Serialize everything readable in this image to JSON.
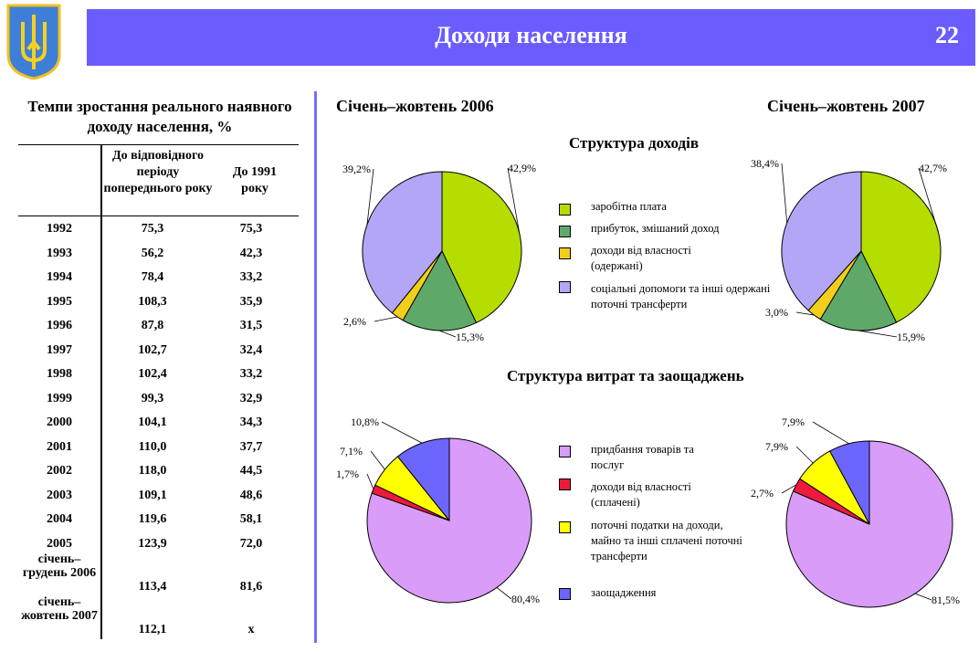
{
  "header": {
    "title": "Доходи населення",
    "page_number": "22"
  },
  "table": {
    "title": "Темпи зростання реального наявного доходу населення, %",
    "columns": [
      "",
      "До відповідного періоду попереднього року",
      "До 1991 року"
    ],
    "rows": [
      [
        "1992",
        "75,3",
        "75,3"
      ],
      [
        "1993",
        "56,2",
        "42,3"
      ],
      [
        "1994",
        "78,4",
        "33,2"
      ],
      [
        "1995",
        "108,3",
        "35,9"
      ],
      [
        "1996",
        "87,8",
        "31,5"
      ],
      [
        "1997",
        "102,7",
        "32,4"
      ],
      [
        "1998",
        "102,4",
        "33,2"
      ],
      [
        "1999",
        "99,3",
        "32,9"
      ],
      [
        "2000",
        "104,1",
        "34,3"
      ],
      [
        "2001",
        "110,0",
        "37,7"
      ],
      [
        "2002",
        "118,0",
        "44,5"
      ],
      [
        "2003",
        "109,1",
        "48,6"
      ],
      [
        "2004",
        "119,6",
        "58,1"
      ],
      [
        "2005",
        "123,9",
        "72,0"
      ],
      [
        "січень–грудень 2006",
        "113,4",
        "81,6"
      ],
      [
        "січень–жовтень 2007",
        "112,1",
        "x"
      ]
    ]
  },
  "periods": [
    "Січень–жовтень 2006",
    "Січень–жовтень 2007"
  ],
  "chart_data": [
    {
      "type": "pie",
      "title": "Структура доходів",
      "period": "Січень–жовтень 2006",
      "categories": [
        "заробітна плата",
        "прибуток, змішаний доход",
        "доходи від власності (одержані)",
        "соціальні допомоги та інші одержані поточні трансферти"
      ],
      "values": [
        42.9,
        15.3,
        2.6,
        39.2
      ],
      "labels": [
        "42,9%",
        "15,3%",
        "2,6%",
        "39,2%"
      ],
      "colors": [
        "#b5dd00",
        "#5ea96a",
        "#f2cf1c",
        "#b3a6f6"
      ]
    },
    {
      "type": "pie",
      "title": "Структура доходів",
      "period": "Січень–жовтень 2007",
      "categories": [
        "заробітна плата",
        "прибуток, змішаний доход",
        "доходи від власності (одержані)",
        "соціальні допомоги та інші одержані поточні трансферти"
      ],
      "values": [
        42.7,
        15.9,
        3.0,
        38.4
      ],
      "labels": [
        "42,7%",
        "15,9%",
        "3,0%",
        "38,4%"
      ],
      "colors": [
        "#b5dd00",
        "#5ea96a",
        "#f2cf1c",
        "#b3a6f6"
      ]
    },
    {
      "type": "pie",
      "title": "Структура витрат та заощаджень",
      "period": "Січень–жовтень 2006",
      "categories": [
        "придбання товарів та послуг",
        "доходи від власності (сплачені)",
        "поточні податки на доходи, майно та інші сплачені поточні трансферти",
        "заощадження"
      ],
      "values": [
        80.4,
        1.7,
        7.1,
        10.8
      ],
      "labels": [
        "80,4%",
        "1,7%",
        "7,1%",
        "10,8%"
      ],
      "colors": [
        "#d99cf8",
        "#ee1a3c",
        "#ffff00",
        "#6c66ff"
      ]
    },
    {
      "type": "pie",
      "title": "Структура витрат та заощаджень",
      "period": "Січень–жовтень 2007",
      "categories": [
        "придбання товарів та послуг",
        "доходи від власності (сплачені)",
        "поточні податки на доходи, майно та інші сплачені поточні трансферти",
        "заощадження"
      ],
      "values": [
        81.5,
        2.7,
        7.9,
        7.9
      ],
      "labels": [
        "81,5%",
        "2,7%",
        "7,9%",
        "7,9%"
      ],
      "colors": [
        "#d99cf8",
        "#ee1a3c",
        "#ffff00",
        "#6c66ff"
      ]
    }
  ]
}
